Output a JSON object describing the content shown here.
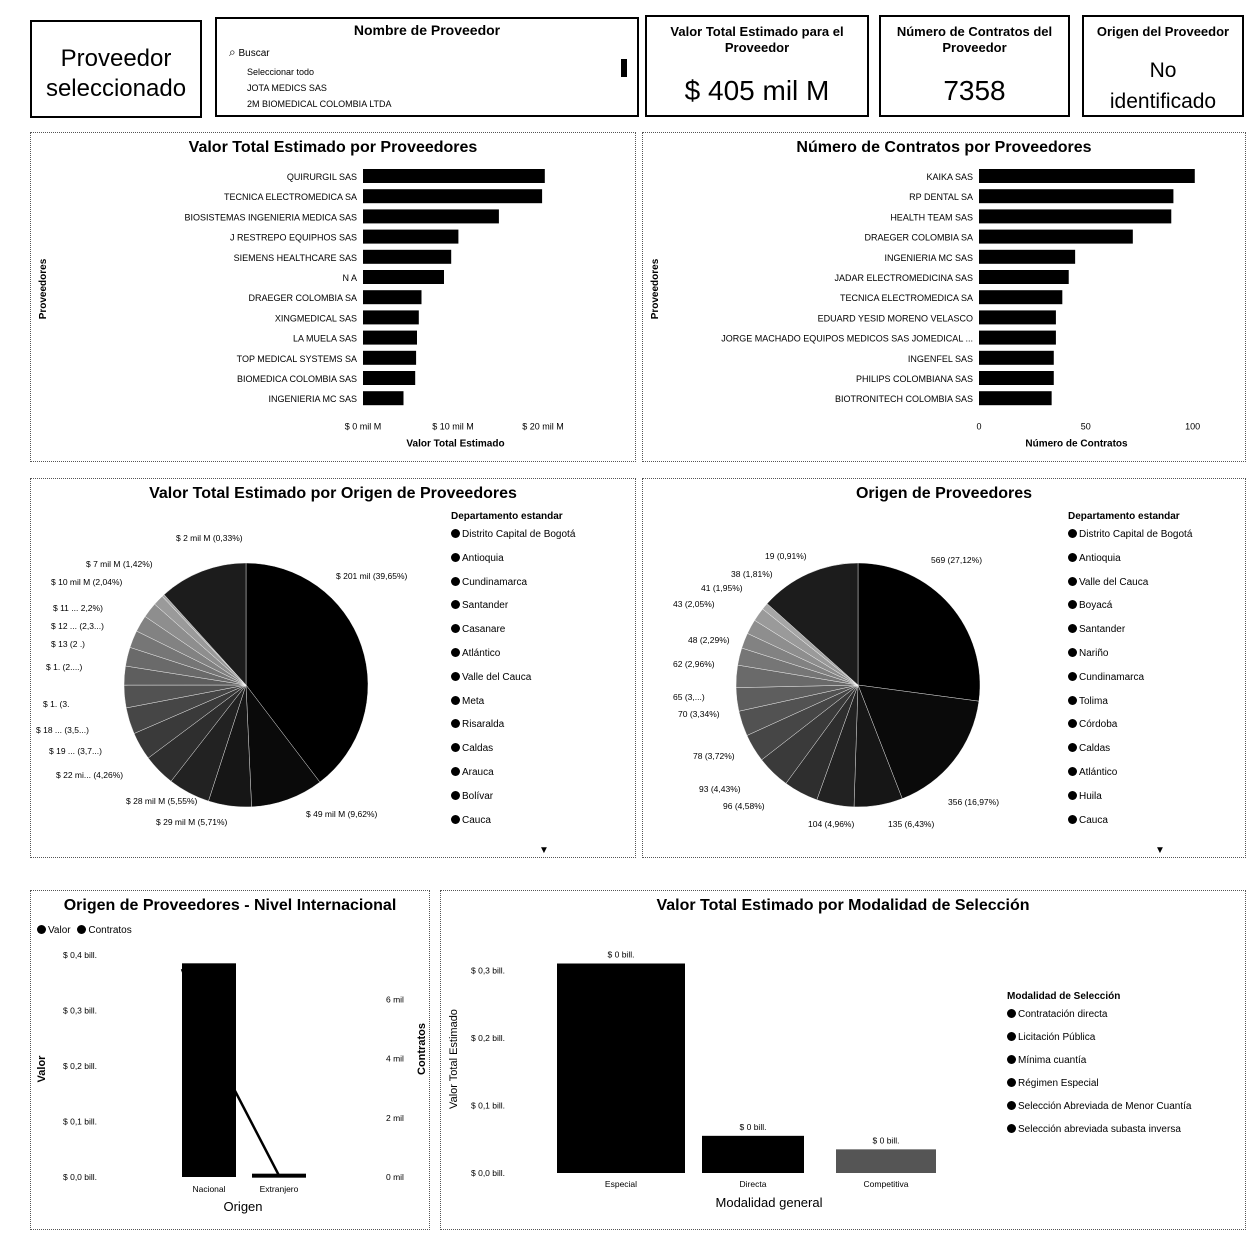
{
  "kpi": {
    "selected_provider": "Proveedor seleccionado",
    "slicer_title": "Nombre de Proveedor",
    "slicer_search": "Buscar",
    "slicer_items": [
      "Seleccionar todo",
      "JOTA MEDICS SAS",
      "2M BIOMEDICAL COLOMBIA LTDA"
    ],
    "total_value_title": "Valor Total Estimado para el Proveedor",
    "total_value": "$ 405 mil M",
    "contracts_title": "Número de Contratos del Proveedor",
    "contracts_value": "7358",
    "origin_title": "Origen del Proveedor",
    "origin_value": "No identificado"
  },
  "chart_data": [
    {
      "type": "bar",
      "orientation": "horizontal",
      "title": "Valor Total Estimado por Proveedores",
      "xlabel": "Valor Total Estimado",
      "ylabel": "Proveedores",
      "xticks": [
        "$ 0 mil M",
        "$ 10 mil M",
        "$ 20 mil M"
      ],
      "xlim": [
        0,
        25
      ],
      "categories": [
        "QUIRURGIL SAS",
        "TECNICA ELECTROMEDICA SA",
        "BIOSISTEMAS INGENIERIA MEDICA SAS",
        "J RESTREPO EQUIPHOS SAS",
        "SIEMENS HEALTHCARE SAS",
        "N A",
        "DRAEGER COLOMBIA SA",
        "XINGMEDICAL SAS",
        "LA MUELA SAS",
        "TOP MEDICAL SYSTEMS SA",
        "BIOMEDICA COLOMBIA SAS",
        "INGENIERIA MC SAS"
      ],
      "values": [
        20.2,
        19.9,
        15.1,
        10.6,
        9.8,
        9.0,
        6.5,
        6.2,
        6.0,
        5.9,
        5.8,
        4.5
      ]
    },
    {
      "type": "bar",
      "orientation": "horizontal",
      "title": "Número de Contratos por Proveedores",
      "xlabel": "Número de Contratos",
      "ylabel": "Proveedores",
      "xticks": [
        "0",
        "50",
        "100"
      ],
      "xlim": [
        0,
        110
      ],
      "categories": [
        "KAIKA SAS",
        "RP DENTAL SA",
        "HEALTH TEAM SAS",
        "DRAEGER COLOMBIA SA",
        "INGENIERIA MC SAS",
        "JADAR ELECTROMEDICINA SAS",
        "TECNICA ELECTROMEDICA SA",
        "EDUARD YESID MORENO VELASCO",
        "JORGE MACHADO EQUIPOS MEDICOS SAS JOMEDICAL ...",
        "INGENFEL SAS",
        "PHILIPS COLOMBIANA SAS",
        "BIOTRONITECH COLOMBIA SAS"
      ],
      "values": [
        101,
        91,
        90,
        72,
        45,
        42,
        39,
        36,
        36,
        35,
        35,
        34
      ]
    },
    {
      "type": "pie",
      "title": "Valor Total Estimado por Origen de Proveedores",
      "legend_title": "Departamento estandar",
      "legend": [
        "Distrito Capital de Bogotá",
        "Antioquia",
        "Cundinamarca",
        "Santander",
        "Casanare",
        "Atlántico",
        "Valle del Cauca",
        "Meta",
        "Risaralda",
        "Caldas",
        "Arauca",
        "Bolívar",
        "Cauca"
      ],
      "values": [
        39.65,
        9.62,
        5.71,
        5.55,
        4.26,
        3.7,
        3.5,
        3,
        2.5,
        2.5,
        2.3,
        2.2,
        2.04,
        1.42,
        0.33,
        11.72
      ],
      "labels": [
        "$ 201 mil (39,65%)",
        "$ 49 mil M (9,62%)",
        "$ 29 mil M (5,71%)",
        "$ 28 mil M (5,55%)",
        "$ 22 mi... (4,26%)",
        "$ 19 ... (3,7...)",
        "$ 18 ... (3,5...)",
        "$ 1. (3.",
        "$ 1. (2....)",
        "$ 13 (2 .)",
        "$ 12 ... (2,3...)",
        "$ 11 ... 2,2%)",
        "$ 10 mil M (2,04%)",
        "$ 7 mil M (1,42%)",
        "$ 2 mil M (0,33%)",
        ""
      ],
      "colors": [
        "#000000",
        "#0a0a0a",
        "#161616",
        "#222222",
        "#2e2e2e",
        "#3a3a3a",
        "#464646",
        "#525252",
        "#5e5e5e",
        "#6a6a6a",
        "#767676",
        "#828282",
        "#8e8e8e",
        "#9a9a9a",
        "#a6a6a6",
        "#1c1c1c"
      ]
    },
    {
      "type": "pie",
      "title": "Origen de Proveedores",
      "legend_title": "Departamento estandar",
      "legend": [
        "Distrito Capital de Bogotá",
        "Antioquia",
        "Valle del Cauca",
        "Boyacá",
        "Santander",
        "Nariño",
        "Cundinamarca",
        "Tolima",
        "Córdoba",
        "Caldas",
        "Atlántico",
        "Huila",
        "Cauca"
      ],
      "values": [
        27.12,
        16.97,
        6.43,
        4.96,
        4.58,
        4.43,
        3.72,
        3.34,
        3.1,
        2.96,
        2.29,
        2.05,
        1.95,
        1.81,
        0.91,
        13.38
      ],
      "labels": [
        "569 (27,12%)",
        "356 (16,97%)",
        "135 (6,43%)",
        "104 (4,96%)",
        "96 (4,58%)",
        "93 (4,43%)",
        "78 (3,72%)",
        "70 (3,34%)",
        "65 (3,...)",
        "62 (2,96%)",
        "48 (2,29%)",
        "43 (2,05%)",
        "41 (1,95%)",
        "38 (1,81%)",
        "19 (0,91%)",
        ""
      ],
      "colors": [
        "#000000",
        "#0a0a0a",
        "#161616",
        "#222222",
        "#2e2e2e",
        "#3a3a3a",
        "#464646",
        "#525252",
        "#5e5e5e",
        "#6a6a6a",
        "#767676",
        "#828282",
        "#8e8e8e",
        "#9a9a9a",
        "#a6a6a6",
        "#1c1c1c"
      ]
    },
    {
      "type": "bar",
      "title": "Origen de Proveedores - Nivel Internacional",
      "legend": [
        "Valor",
        "Contratos"
      ],
      "categories": [
        "Nacional",
        "Extranjero"
      ],
      "xlabel": "Origen",
      "ylabel": "Valor",
      "y2label": "Contratos",
      "yticks": [
        "$ 0,4 bill.",
        "$ 0,3 bill.",
        "$ 0,2 bill.",
        "$ 0,1 bill.",
        "$ 0,0 bill."
      ],
      "y2ticks": [
        "6 mil",
        "4 mil",
        "2 mil",
        "0 mil"
      ],
      "ylim": [
        0,
        0.4
      ],
      "y2lim": [
        0,
        7.5
      ],
      "series": [
        {
          "name": "Valor",
          "type": "bar",
          "values": [
            0.385,
            0.006
          ]
        },
        {
          "name": "Contratos",
          "type": "line",
          "values": [
            4.6,
            0.05
          ]
        }
      ]
    },
    {
      "type": "bar",
      "title": "Valor Total Estimado por Modalidad de Selección",
      "xlabel": "Modalidad general",
      "ylabel": "Valor Total Estimado",
      "yticks": [
        "$ 0,3 bill.",
        "$ 0,2 bill.",
        "$ 0,1 bill.",
        "$ 0,0 bill."
      ],
      "ylim": [
        0,
        0.3
      ],
      "categories": [
        "Especial",
        "Directa",
        "Competitiva"
      ],
      "values": [
        0.31,
        0.055,
        0.035
      ],
      "data_labels": [
        "$ 0 bill.",
        "$ 0 bill.",
        "$ 0 bill."
      ],
      "legend_title": "Modalidad de Selección",
      "legend": [
        "Contratación directa",
        "Licitación Pública",
        "Mínima cuantía",
        "Régimen Especial",
        "Selección Abreviada de Menor Cuantía",
        "Selección abreviada subasta inversa"
      ]
    }
  ]
}
